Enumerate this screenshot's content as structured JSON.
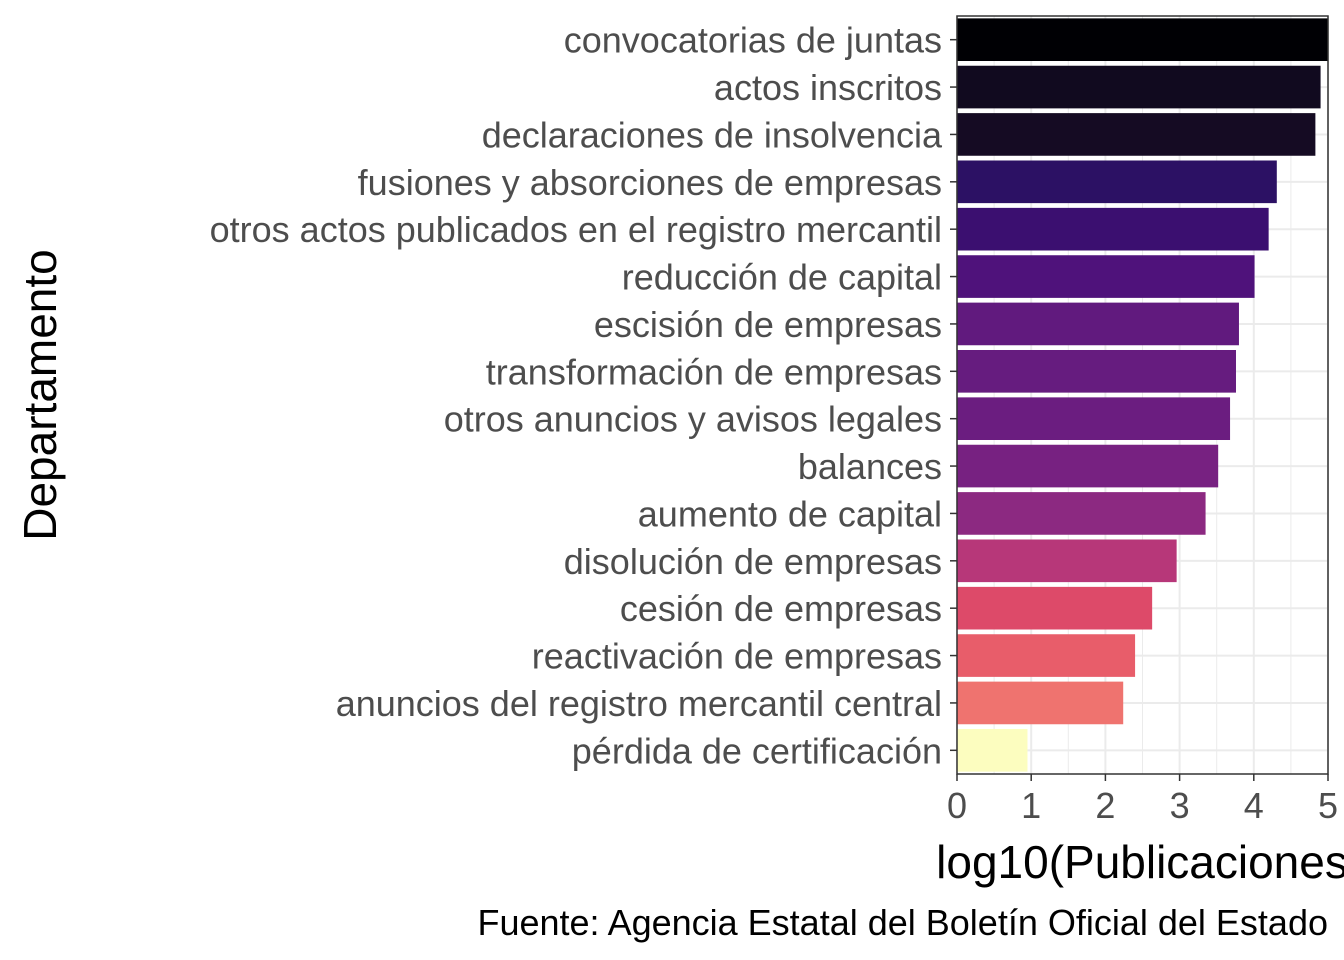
{
  "chart_data": {
    "type": "bar",
    "orientation": "horizontal",
    "categories": [
      "convocatorias de juntas",
      "actos inscritos",
      "declaraciones de insolvencia",
      "fusiones y absorciones de empresas",
      "otros actos publicados en el registro mercantil",
      "reducción de capital",
      "escisión de empresas",
      "transformación de empresas",
      "otros anuncios y avisos legales",
      "balances",
      "aumento de capital",
      "disolución de empresas",
      "cesión de empresas",
      "reactivación de empresas",
      "anuncios del registro mercantil central",
      "pérdida de certificación"
    ],
    "values": [
      5.0,
      4.9,
      4.83,
      4.31,
      4.2,
      4.01,
      3.8,
      3.76,
      3.68,
      3.52,
      3.35,
      2.96,
      2.63,
      2.4,
      2.24,
      0.95
    ],
    "colors": [
      "#000004",
      "#110a1f",
      "#150b23",
      "#2c1164",
      "#3b0f70",
      "#4f127b",
      "#611a7e",
      "#661c7f",
      "#6b1d80",
      "#772181",
      "#8c2981",
      "#b73779",
      "#dd4a69",
      "#e85d6a",
      "#ef736f",
      "#fcfdbf"
    ],
    "xlabel": "log10(Publicaciones",
    "ylabel": "Departamento",
    "xlim": [
      0,
      5
    ],
    "xticks": [
      "0",
      "1",
      "2",
      "3",
      "4",
      "5"
    ],
    "grid": true,
    "legend": "none"
  },
  "caption": "Fuente: Agencia Estatal del Boletín Oficial del Estado"
}
